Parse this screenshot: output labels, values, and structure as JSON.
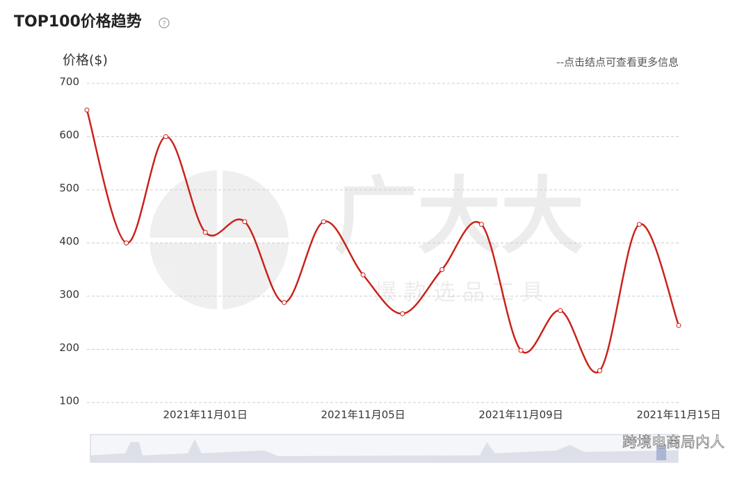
{
  "title": "TOP100价格趋势",
  "note": "--点击结点可查看更多信息",
  "watermark": {
    "brand": "广大大",
    "slogan": "爆 款 选 品 工 具",
    "source": "跨境电商局内人"
  },
  "chart_data": {
    "type": "line",
    "y_label": "价格($)",
    "categories": [
      null,
      null,
      null,
      "2021年11月01日",
      null,
      null,
      null,
      "2021年11月05日",
      null,
      null,
      null,
      "2021年11月09日",
      null,
      null,
      null,
      "2021年11月15日"
    ],
    "series": [
      {
        "name": "价格",
        "color": "#c9221a",
        "values": [
          650,
          400,
          600,
          420,
          440,
          288,
          440,
          340,
          267,
          350,
          435,
          198,
          273,
          160,
          435,
          245
        ]
      }
    ],
    "ylim": [
      100,
      700
    ],
    "yticks": [
      100,
      200,
      300,
      400,
      500,
      600,
      700
    ],
    "grid": true,
    "smooth": true
  }
}
